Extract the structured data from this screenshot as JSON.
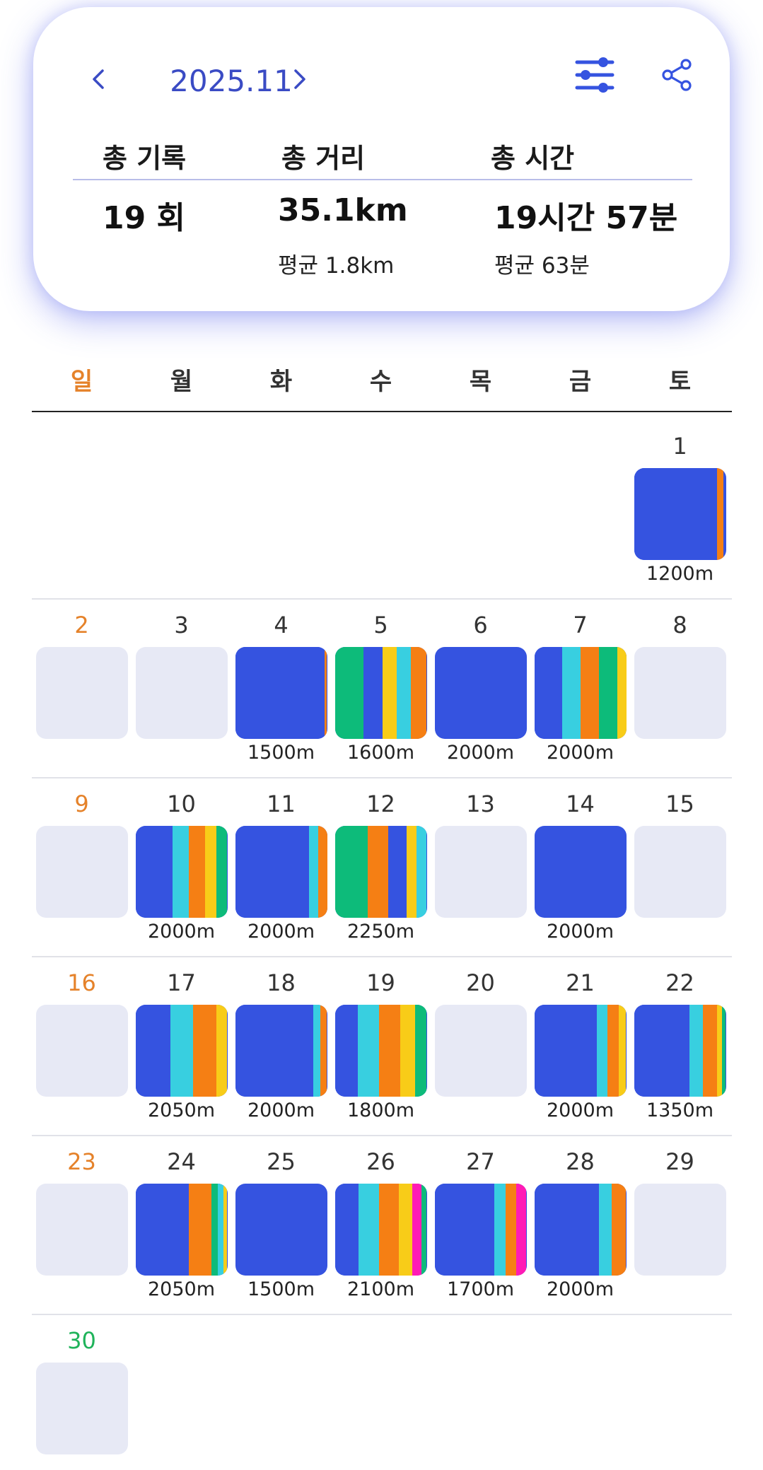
{
  "header": {
    "month": "2025.11",
    "prev_icon": "chevron-left-icon",
    "next_icon": "chevron-right-icon",
    "filter_icon": "sliders-icon",
    "share_icon": "share-icon"
  },
  "summary": {
    "records": {
      "label": "총 기록",
      "value": "19 회"
    },
    "distance": {
      "label": "총 거리",
      "value": "35.1km",
      "avg": "평균 1.8km"
    },
    "time": {
      "label": "총 시간",
      "value": "19시간 57분",
      "avg": "평균 63분"
    }
  },
  "weekdays": [
    "일",
    "월",
    "화",
    "수",
    "목",
    "금",
    "토"
  ],
  "colors": {
    "accent": "#3a4bc4",
    "blue": "#3553e0",
    "cyan": "#38cfe0",
    "orange": "#f57f14",
    "yellow": "#f8cc18",
    "green": "#0dbb7a",
    "magenta": "#ff1bb5",
    "empty": "#e7e9f5",
    "sunday": "#e5822a"
  },
  "days": [
    {
      "day": "1",
      "distance": "1200m",
      "segments": [
        [
          "blue",
          90
        ],
        [
          "orange",
          7
        ]
      ]
    },
    {
      "day": "2"
    },
    {
      "day": "3"
    },
    {
      "day": "4",
      "distance": "1500m",
      "segments": [
        [
          "blue",
          97
        ],
        [
          "orange",
          3
        ]
      ]
    },
    {
      "day": "5",
      "distance": "1600m",
      "segments": [
        [
          "green",
          31
        ],
        [
          "blue",
          21
        ],
        [
          "yellow",
          15
        ],
        [
          "cyan",
          16
        ],
        [
          "orange",
          17
        ]
      ]
    },
    {
      "day": "6",
      "distance": "2000m",
      "segments": [
        [
          "blue",
          100
        ]
      ]
    },
    {
      "day": "7",
      "distance": "2000m",
      "segments": [
        [
          "blue",
          30
        ],
        [
          "cyan",
          20
        ],
        [
          "orange",
          20
        ],
        [
          "green",
          20
        ],
        [
          "yellow",
          10
        ]
      ]
    },
    {
      "day": "8"
    },
    {
      "day": "9"
    },
    {
      "day": "10",
      "distance": "2000m",
      "segments": [
        [
          "blue",
          40
        ],
        [
          "cyan",
          18
        ],
        [
          "orange",
          18
        ],
        [
          "yellow",
          12
        ],
        [
          "green",
          12
        ]
      ]
    },
    {
      "day": "11",
      "distance": "2000m",
      "segments": [
        [
          "blue",
          80
        ],
        [
          "cyan",
          10
        ],
        [
          "orange",
          10
        ]
      ]
    },
    {
      "day": "12",
      "distance": "2250m",
      "segments": [
        [
          "green",
          36
        ],
        [
          "orange",
          22
        ],
        [
          "blue",
          20
        ],
        [
          "yellow",
          11
        ],
        [
          "cyan",
          11
        ]
      ]
    },
    {
      "day": "13"
    },
    {
      "day": "14",
      "distance": "2000m",
      "segments": [
        [
          "blue",
          100
        ]
      ]
    },
    {
      "day": "15"
    },
    {
      "day": "16"
    },
    {
      "day": "17",
      "distance": "2050m",
      "segments": [
        [
          "blue",
          38
        ],
        [
          "cyan",
          25
        ],
        [
          "orange",
          25
        ],
        [
          "yellow",
          12
        ]
      ]
    },
    {
      "day": "18",
      "distance": "2000m",
      "segments": [
        [
          "blue",
          85
        ],
        [
          "cyan",
          8
        ],
        [
          "orange",
          7
        ]
      ]
    },
    {
      "day": "19",
      "distance": "1800m",
      "segments": [
        [
          "blue",
          25
        ],
        [
          "cyan",
          23
        ],
        [
          "orange",
          23
        ],
        [
          "yellow",
          16
        ],
        [
          "green",
          13
        ]
      ]
    },
    {
      "day": "20"
    },
    {
      "day": "21",
      "distance": "2000m",
      "segments": [
        [
          "blue",
          68
        ],
        [
          "cyan",
          12
        ],
        [
          "orange",
          12
        ],
        [
          "yellow",
          8
        ]
      ]
    },
    {
      "day": "22",
      "distance": "1350m",
      "segments": [
        [
          "blue",
          60
        ],
        [
          "cyan",
          15
        ],
        [
          "orange",
          15
        ],
        [
          "yellow",
          6
        ],
        [
          "green",
          4
        ]
      ]
    },
    {
      "day": "23"
    },
    {
      "day": "24",
      "distance": "2050m",
      "segments": [
        [
          "blue",
          58
        ],
        [
          "orange",
          25
        ],
        [
          "green",
          7
        ],
        [
          "cyan",
          6
        ],
        [
          "yellow",
          4
        ]
      ]
    },
    {
      "day": "25",
      "distance": "1500m",
      "segments": [
        [
          "blue",
          100
        ]
      ]
    },
    {
      "day": "26",
      "distance": "2100m",
      "segments": [
        [
          "blue",
          26
        ],
        [
          "cyan",
          22
        ],
        [
          "orange",
          22
        ],
        [
          "yellow",
          14
        ],
        [
          "magenta",
          10
        ],
        [
          "green",
          6
        ]
      ]
    },
    {
      "day": "27",
      "distance": "1700m",
      "segments": [
        [
          "blue",
          65
        ],
        [
          "cyan",
          12
        ],
        [
          "orange",
          12
        ],
        [
          "magenta",
          11
        ]
      ]
    },
    {
      "day": "28",
      "distance": "2000m",
      "segments": [
        [
          "blue",
          70
        ],
        [
          "cyan",
          14
        ],
        [
          "orange",
          16
        ]
      ]
    },
    {
      "day": "29"
    },
    {
      "day": "30"
    }
  ]
}
